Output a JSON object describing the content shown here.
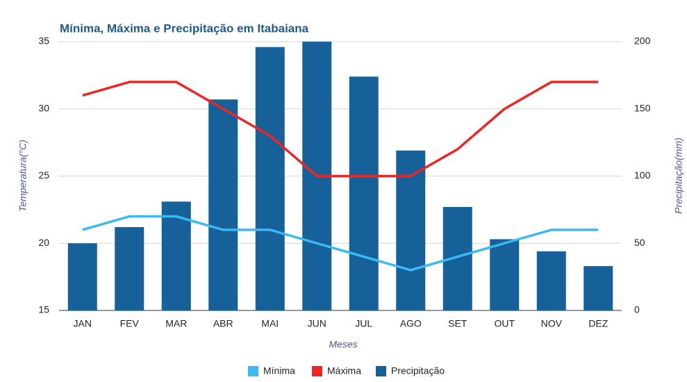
{
  "chart_data": {
    "type": "bar_line",
    "title": "Mínima, Máxima e Precipitação em Itabaiana",
    "x_label": "Meses",
    "y_label": "Temperatura(°C)",
    "y2_label": "Precipitação(mm)",
    "categories": [
      "JAN",
      "FEV",
      "MAR",
      "ABR",
      "MAI",
      "JUN",
      "JUL",
      "AGO",
      "SET",
      "OUT",
      "NOV",
      "DEZ"
    ],
    "series": [
      {
        "name": "Mínima",
        "type": "line",
        "color": "#3bb9f5",
        "values": [
          21,
          22,
          22,
          21,
          21,
          20,
          19,
          18,
          19,
          20,
          21,
          21
        ]
      },
      {
        "name": "Máxima",
        "type": "line",
        "color": "#f02420",
        "values": [
          31,
          32,
          32,
          30,
          28,
          25,
          25,
          25,
          27,
          30,
          32,
          32
        ]
      },
      {
        "name": "Precipitação",
        "type": "bar",
        "axis": "y2",
        "color": "#17619a",
        "values": [
          50,
          62,
          81,
          157,
          196,
          200,
          174,
          119,
          77,
          53,
          44,
          33
        ]
      }
    ],
    "ylim": [
      15,
      35
    ],
    "yticks": [
      15,
      20,
      25,
      30,
      35
    ],
    "y2lim": [
      0,
      200
    ],
    "y2ticks": [
      0,
      50,
      100,
      150,
      200
    ],
    "grid": true,
    "legend": "bottom"
  }
}
